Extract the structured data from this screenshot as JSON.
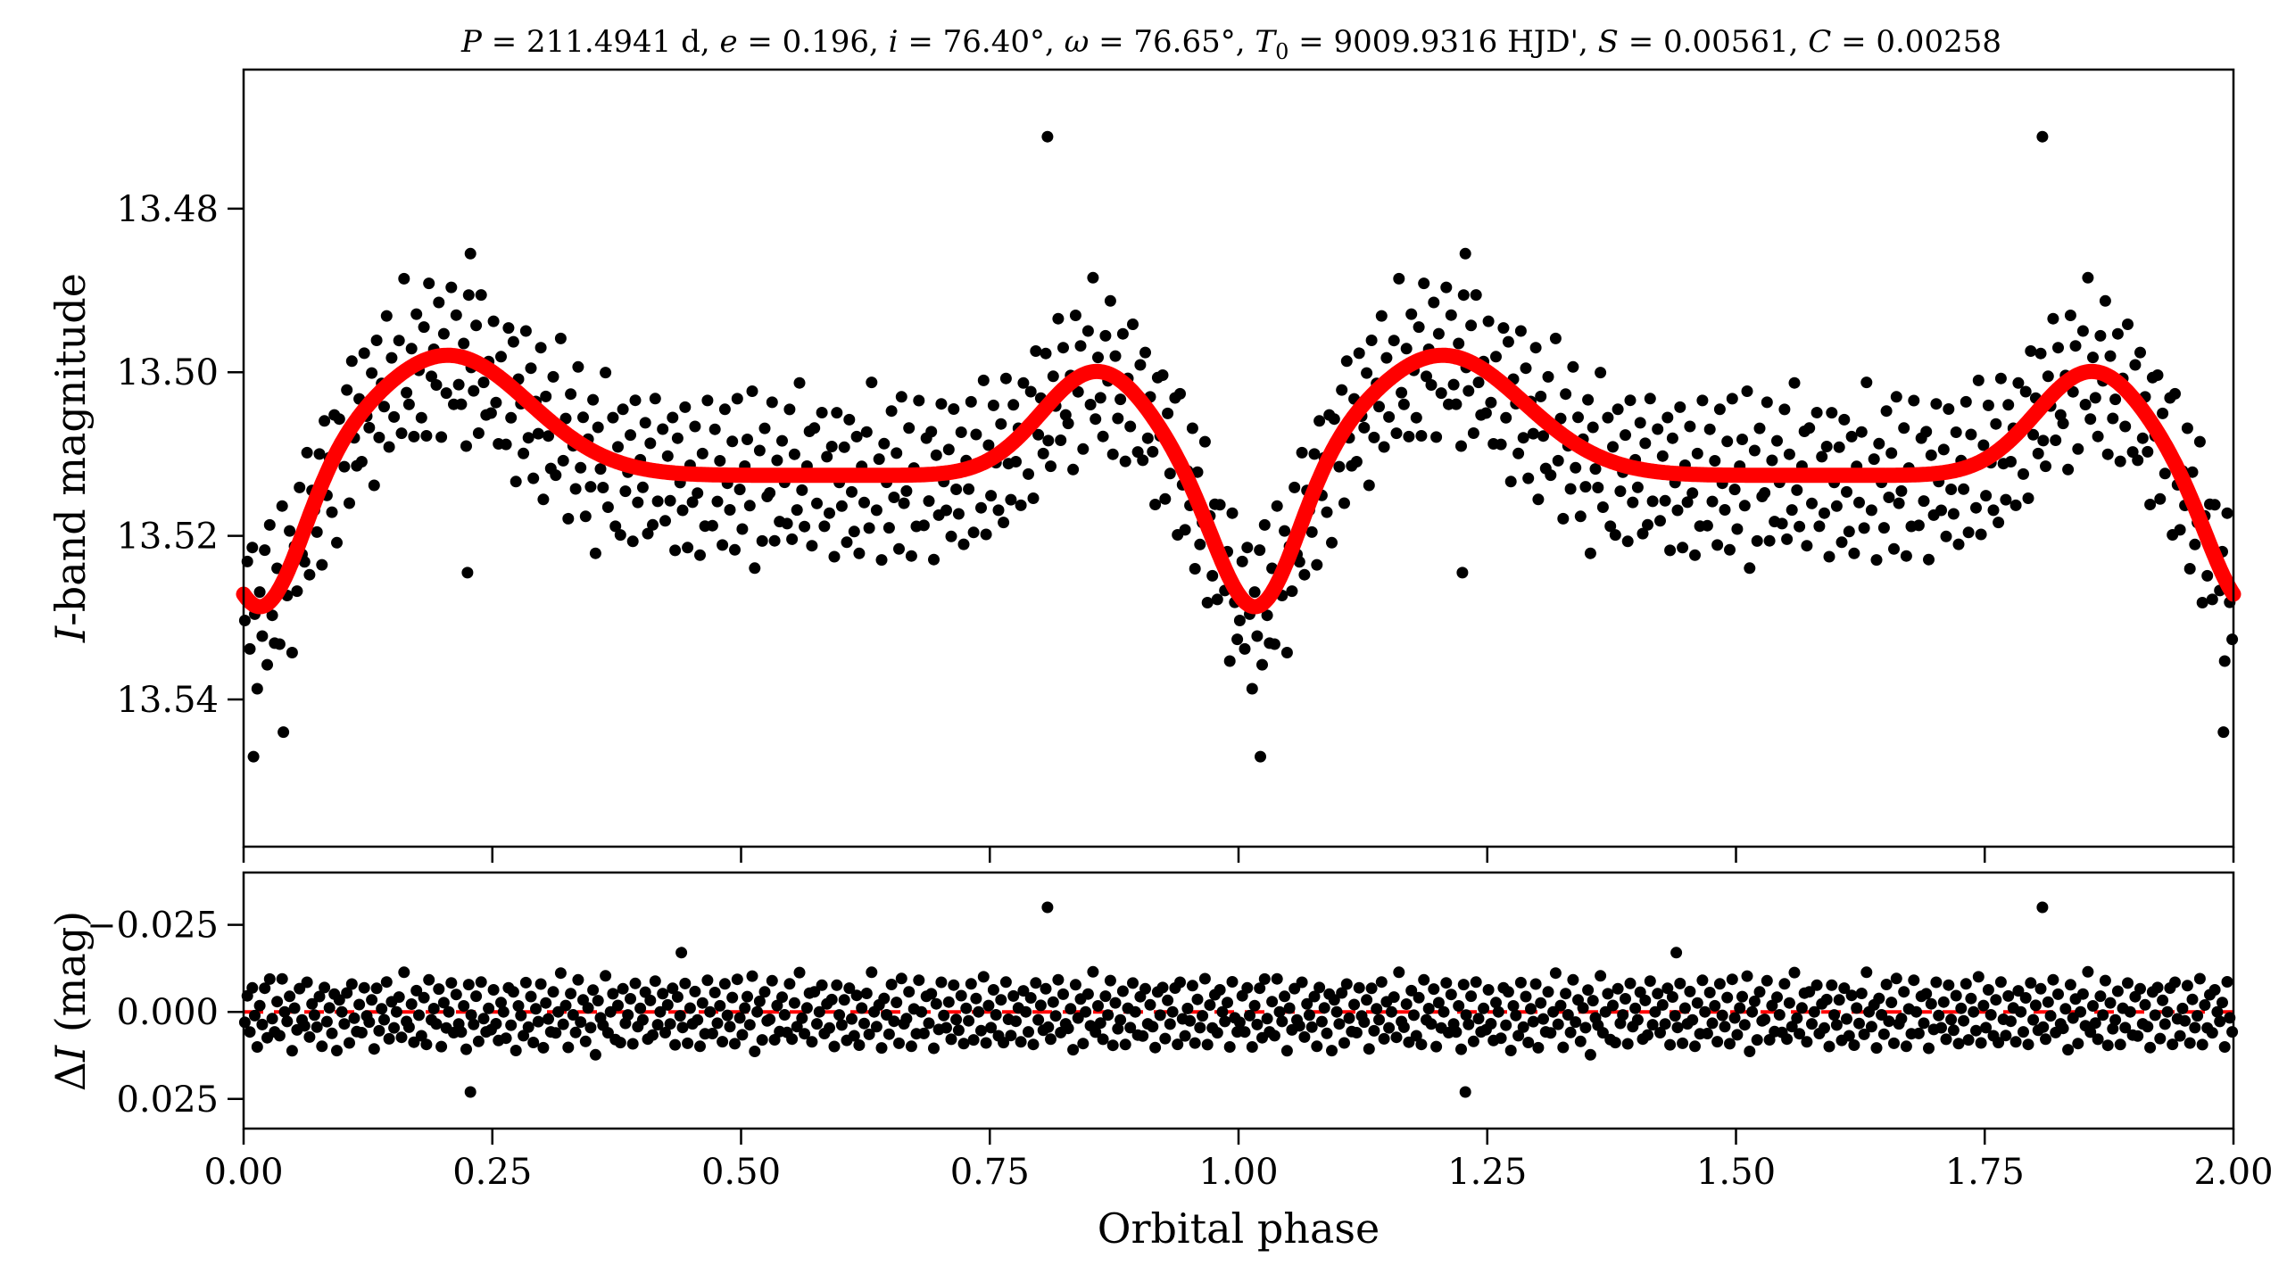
{
  "chart_data": [
    {
      "type": "scatter",
      "panel": "top",
      "title": "P = 211.4941 d, e = 0.196, i = 76.40°, ω = 76.65°, T0 = 9009.9316 HJD', S = 0.00561, C = 0.00258",
      "title_parts": {
        "P_sym": "P",
        "P_val": " = 211.4941 d, ",
        "e_sym": "e",
        "e_val": " = 0.196, ",
        "i_sym": "i",
        "i_val": " = 76.40°, ",
        "w_sym": "ω",
        "w_val": " = 76.65°, ",
        "T_sym": "T",
        "T_sub": "0",
        "T_val": " = 9009.9316 HJD', ",
        "S_sym": "S",
        "S_val": " = 0.00561, ",
        "C_sym": "C",
        "C_val": " = 0.00258"
      },
      "ylabel_parts": {
        "sym": "I",
        "rest": "-band magnitude"
      },
      "xlim": [
        0.0,
        2.0
      ],
      "ylim": [
        13.558,
        13.463
      ],
      "y_inverted": true,
      "y_ticks": [
        "13.48",
        "13.50",
        "13.52",
        "13.54"
      ],
      "y_tick_values": [
        13.48,
        13.5,
        13.52,
        13.54
      ],
      "x_tick_values": [
        0.0,
        0.25,
        0.5,
        0.75,
        1.0,
        1.25,
        1.5,
        1.75,
        2.0
      ],
      "series": [
        {
          "kind": "points",
          "color": "#000000",
          "model_offsets": [
            0.003,
            -0.004,
            0.006,
            -0.008,
            0.001,
            0.009,
            -0.002,
            0.004,
            -0.006,
            0.007,
            -0.011,
            0.002,
            0.005,
            -0.003,
            0.008,
            -0.009,
            0.0,
            0.003,
            -0.005,
            0.01,
            -0.001,
            0.006,
            -0.007,
            0.002,
            0.004,
            -0.01,
            0.007,
            -0.002,
            0.001,
            0.005,
            -0.004,
            0.009,
            -0.008,
            0.003,
            -0.001,
            0.006,
            -0.006,
            0.011,
            -0.003,
            0.0,
            0.004,
            -0.005,
            0.008,
            -0.009,
            0.002,
            0.005,
            -0.002,
            0.007,
            -0.007,
            0.001,
            0.003,
            -0.004,
            0.01,
            -0.006,
            0.006,
            -0.001,
            0.002,
            -0.008,
            0.009,
            -0.003,
            0.004,
            0.0,
            -0.005,
            0.007,
            -0.01,
            0.003,
            0.005,
            -0.002,
            0.008,
            -0.007,
            0.001,
            0.006,
            -0.004,
            0.011,
            -0.009,
            0.002,
            -0.001,
            0.004,
            -0.006,
            0.009,
            -0.003,
            0.005,
            0.0,
            -0.008,
            0.007,
            -0.005,
            0.003,
            0.006,
            -0.002,
            0.01,
            -0.007,
            0.001,
            0.004,
            -0.004,
            0.008,
            -0.01,
            0.002,
            0.005,
            -0.001,
            0.006,
            -0.006,
            0.003,
            0.009,
            -0.003,
            0.0,
            0.007,
            -0.008,
            0.004,
            -0.005,
            0.011,
            -0.002,
            0.001,
            0.006,
            -0.009,
            0.005,
            -0.004,
            0.008,
            -0.001,
            0.003,
            -0.007,
            0.01,
            -0.003,
            0.002,
            0.005,
            -0.006,
            0.007,
            0.0,
            -0.01,
            0.004,
            -0.002,
            0.009,
            -0.005,
            0.001,
            0.006,
            -0.008,
            0.003,
            -0.004,
            0.008,
            -0.001,
            0.005,
            -0.007,
            0.011,
            -0.003,
            0.002,
            0.004,
            -0.009,
            0.006,
            0.0,
            -0.005,
            0.007,
            -0.002,
            0.01,
            -0.006,
            0.003,
            0.001,
            -0.004,
            0.008,
            -0.008,
            0.005,
            -0.001,
            0.002,
            -0.006,
            0.009,
            -0.003,
            0.006,
            -0.01,
            0.004,
            0.0,
            -0.005,
            0.007,
            -0.002,
            0.003,
            -0.007,
            0.011,
            -0.004,
            0.001,
            0.005,
            -0.009,
            0.008,
            -0.001,
            0.004,
            -0.006,
            0.002,
            0.01,
            -0.003,
            0.006,
            -0.008,
            0.0,
            0.007,
            -0.005,
            0.003,
            -0.002,
            0.009,
            -0.007,
            0.001,
            0.005,
            -0.004,
            0.008,
            -0.01,
            0.002,
            0.006,
            -0.001,
            -0.005,
            0.004,
            -0.009,
            0.011,
            0.0,
            -0.003,
            0.007,
            -0.006,
            0.003,
            0.002,
            -0.008,
            0.009,
            -0.002,
            0.005,
            -0.004,
            0.001,
            0.006,
            -0.007,
            0.008,
            -0.003,
            0.004,
            -0.01,
            0.002,
            0.007,
            -0.001,
            -0.005,
            0.01,
            -0.006,
            0.003,
            0.0,
            -0.009,
            0.006,
            -0.002,
            0.005,
            -0.004,
            0.009,
            -0.007,
            0.001,
            0.004,
            -0.003,
            0.008,
            -0.008,
            0.002,
            0.006,
            -0.005,
            0.011,
            -0.001,
            0.003,
            -0.006,
            0.007,
            -0.01,
            0.0,
            0.005,
            -0.002,
            0.009,
            -0.004,
            0.001,
            0.006,
            -0.007,
            0.003,
            -0.003,
            0.008,
            -0.009,
            0.004,
            0.002,
            -0.005,
            0.01,
            -0.001,
            0.006,
            -0.008,
            0.0,
            0.007,
            -0.004,
            0.003,
            -0.006,
            0.011,
            -0.002,
            0.005,
            -0.01,
            0.001,
            0.004,
            -0.003,
            0.009,
            -0.007,
            0.002,
            0.006,
            -0.005,
            0.008,
            -0.001,
            0.003,
            -0.008,
            0.007,
            -0.004,
            0.0,
            0.005,
            -0.009,
            0.01,
            -0.002,
            0.004,
            -0.006,
            0.001,
            0.007,
            -0.003,
            0.009,
            -0.01,
            0.002,
            0.006,
            -0.005,
            0.003,
            -0.001,
            0.008,
            -0.007,
            0.0,
            0.005,
            -0.004,
            0.011,
            -0.008,
            0.002,
            -0.002,
            0.006,
            -0.006,
            0.004,
            0.009,
            -0.003,
            0.001,
            -0.009,
            0.007,
            -0.005,
            0.003,
            0.005,
            -0.001,
            0.01,
            -0.007,
            0.002,
            -0.004,
            0.008,
            0.0,
            -0.006,
            0.004,
            -0.01,
            0.006,
            -0.002,
            0.003,
            0.007,
            -0.005,
            0.001,
            -0.008,
            0.009,
            -0.003,
            0.005,
            0.002,
            -0.006,
            0.011,
            -0.001,
            0.004,
            -0.009,
            0.0,
            0.006,
            -0.004,
            0.008,
            -0.007,
            0.003,
            -0.002,
            0.005,
            0.01,
            -0.005,
            0.001,
            -0.008,
            0.007,
            -0.003,
            0.004,
            0.0,
            -0.006,
            0.009,
            -0.01,
            0.002,
            0.006,
            -0.001,
            0.003,
            -0.007,
            0.008,
            -0.004,
            0.005,
            0.001,
            -0.009,
            0.011,
            -0.002,
            0.004,
            -0.005,
            0.007,
            -0.006,
            0.0,
            0.003,
            -0.003,
            0.009,
            -0.008,
            0.002,
            0.006
          ],
          "model": {
            "base": 13.5128,
            "terms": [
              {
                "amp": 0.0172,
                "center": 0.018,
                "width": 0.04
              },
              {
                "amp": -0.0148,
                "center": 0.205,
                "width": 0.082
              },
              {
                "amp": -0.0128,
                "center": 0.858,
                "width": 0.056
              },
              {
                "amp": -0.0002,
                "center": 0.56,
                "width": 0.25
              }
            ]
          },
          "outliers": [
            {
              "x": 0.808,
              "y": 13.4712
            },
            {
              "x": 1.808,
              "y": 13.4712
            },
            {
              "x": 0.228,
              "y": 13.4855
            },
            {
              "x": 1.228,
              "y": 13.4855
            },
            {
              "x": 0.01,
              "y": 13.547
            },
            {
              "x": 1.022,
              "y": 13.547
            },
            {
              "x": 0.225,
              "y": 13.5245
            },
            {
              "x": 1.225,
              "y": 13.5245
            },
            {
              "x": 0.04,
              "y": 13.544
            },
            {
              "x": 1.99,
              "y": 13.544
            }
          ]
        },
        {
          "kind": "model-curve",
          "color": "#ff0000"
        }
      ]
    },
    {
      "type": "scatter",
      "panel": "bottom",
      "ylabel_parts": {
        "sym": "I",
        "prefix": "Δ",
        "rest": " (mag)"
      },
      "xlabel": "Orbital phase",
      "xlim": [
        0.0,
        2.0
      ],
      "ylim": [
        0.0335,
        -0.04
      ],
      "y_inverted": true,
      "y_ticks": [
        "−0.025",
        "0.000",
        "0.025"
      ],
      "y_tick_values": [
        -0.025,
        0.0,
        0.025
      ],
      "x_ticks": [
        "0.00",
        "0.25",
        "0.50",
        "0.75",
        "1.00",
        "1.25",
        "1.50",
        "1.75",
        "2.00"
      ],
      "x_tick_values": [
        0.0,
        0.25,
        0.5,
        0.75,
        1.0,
        1.25,
        1.5,
        1.75,
        2.0
      ],
      "zero_line": {
        "y": 0.0,
        "color": "#ff0000",
        "style": "dashed"
      },
      "outliers": [
        {
          "x": 0.808,
          "y": -0.03
        },
        {
          "x": 1.808,
          "y": -0.03
        },
        {
          "x": 0.228,
          "y": 0.023
        },
        {
          "x": 1.228,
          "y": 0.023
        },
        {
          "x": 0.44,
          "y": -0.017
        },
        {
          "x": 1.44,
          "y": -0.017
        }
      ]
    }
  ]
}
